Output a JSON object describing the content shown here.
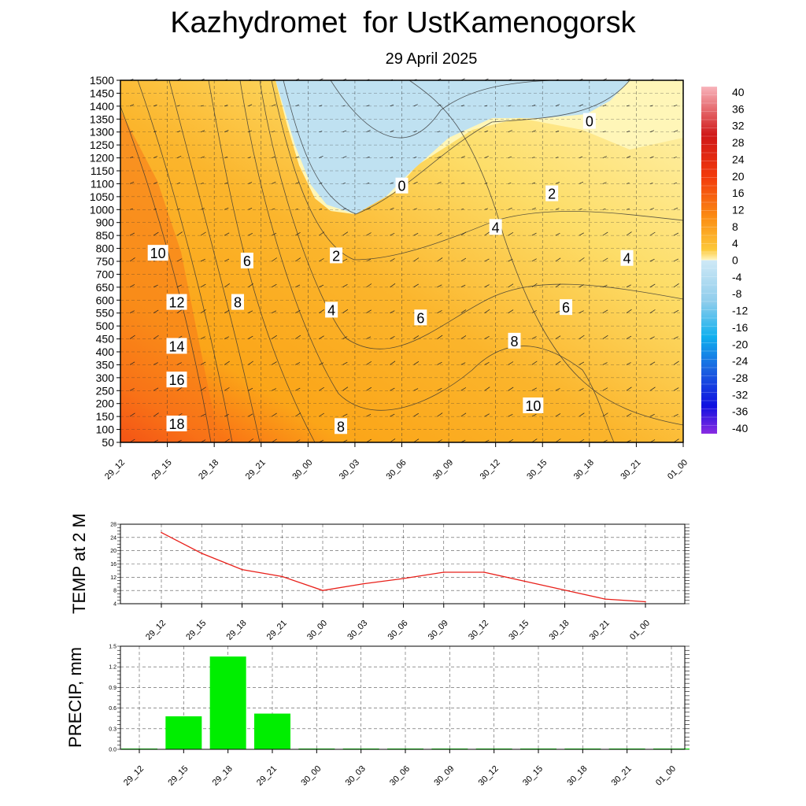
{
  "header": {
    "title": "Kazhydromet  for UstKamenogorsk",
    "subtitle": "29 April 2025"
  },
  "chart_data": [
    {
      "type": "heatmap",
      "title": "Kazhydromet  for UstKamenogorsk",
      "subtitle": "29 April 2025",
      "x_ticks": [
        "29_12",
        "29_15",
        "29_18",
        "29_21",
        "30_00",
        "30_03",
        "30_06",
        "30_09",
        "30_12",
        "30_15",
        "30_18",
        "30_21",
        "01_00"
      ],
      "y_ticks": [
        1500,
        1450,
        1400,
        1350,
        1300,
        1250,
        1200,
        1150,
        1100,
        1050,
        1000,
        900,
        850,
        800,
        750,
        700,
        650,
        600,
        550,
        500,
        450,
        400,
        350,
        300,
        250,
        200,
        150,
        100,
        50
      ],
      "colorbar_ticks": [
        40,
        36,
        32,
        28,
        24,
        20,
        16,
        12,
        8,
        4,
        0,
        -4,
        -8,
        -12,
        -16,
        -20,
        -24,
        -28,
        -32,
        -36,
        -40
      ],
      "contour_labels": [
        {
          "label": "10",
          "x": 0.8,
          "level": 780
        },
        {
          "label": "12",
          "x": 1.2,
          "level": 590
        },
        {
          "label": "14",
          "x": 1.2,
          "level": 420
        },
        {
          "label": "16",
          "x": 1.2,
          "level": 290
        },
        {
          "label": "18",
          "x": 1.2,
          "level": 120
        },
        {
          "label": "6",
          "x": 2.7,
          "level": 750
        },
        {
          "label": "8",
          "x": 2.5,
          "level": 590
        },
        {
          "label": "2",
          "x": 4.6,
          "level": 770
        },
        {
          "label": "4",
          "x": 4.5,
          "level": 560
        },
        {
          "label": "8",
          "x": 4.7,
          "level": 110
        },
        {
          "label": "0",
          "x": 6.0,
          "level": 1090
        },
        {
          "label": "6",
          "x": 6.4,
          "level": 530
        },
        {
          "label": "4",
          "x": 8.0,
          "level": 880
        },
        {
          "label": "8",
          "x": 8.4,
          "level": 440
        },
        {
          "label": "10",
          "x": 8.8,
          "level": 190
        },
        {
          "label": "2",
          "x": 9.2,
          "level": 1060
        },
        {
          "label": "6",
          "x": 9.5,
          "level": 570
        },
        {
          "label": "0",
          "x": 10.0,
          "level": 1340
        },
        {
          "label": "4",
          "x": 10.8,
          "level": 760
        }
      ],
      "colors": {
        "hot": "#ee2a10",
        "warm": "#fbac14",
        "mild": "#fde06e",
        "pale": "#fff7bd",
        "cold": "#bfe1f1"
      }
    },
    {
      "type": "line",
      "ylabel": "TEMP at 2 M",
      "categories": [
        "29_12",
        "29_15",
        "29_18",
        "29_21",
        "30_00",
        "30_03",
        "30_06",
        "30_09",
        "30_12",
        "30_15",
        "30_18",
        "30_21",
        "01_00"
      ],
      "series": [
        {
          "values": [
            25.5,
            19.2,
            14.3,
            12.2,
            8.0,
            10.0,
            11.6,
            13.5,
            13.5,
            10.8,
            8.1,
            5.4,
            4.6
          ]
        }
      ],
      "y_ticks": [
        28,
        24,
        20,
        16,
        12,
        8,
        4
      ],
      "ylim": [
        4,
        28
      ],
      "colors": {
        "line": "#e8201a"
      }
    },
    {
      "type": "bar",
      "ylabel": "PRECIP, mm",
      "categories": [
        "29_12",
        "29_15",
        "29_18",
        "29_21",
        "30_00",
        "30_03",
        "30_06",
        "30_09",
        "30_12",
        "30_15",
        "30_18",
        "30_21",
        "01_00"
      ],
      "values": [
        0,
        0.48,
        1.35,
        0.52,
        0,
        0,
        0,
        0,
        0,
        0,
        0,
        0,
        0
      ],
      "y_ticks": [
        "1.5",
        "1.2",
        "0.9",
        "0.6",
        "0.3",
        "0.0"
      ],
      "ylim": [
        0,
        1.5
      ],
      "colors": {
        "bar": "#00ee00"
      }
    }
  ]
}
